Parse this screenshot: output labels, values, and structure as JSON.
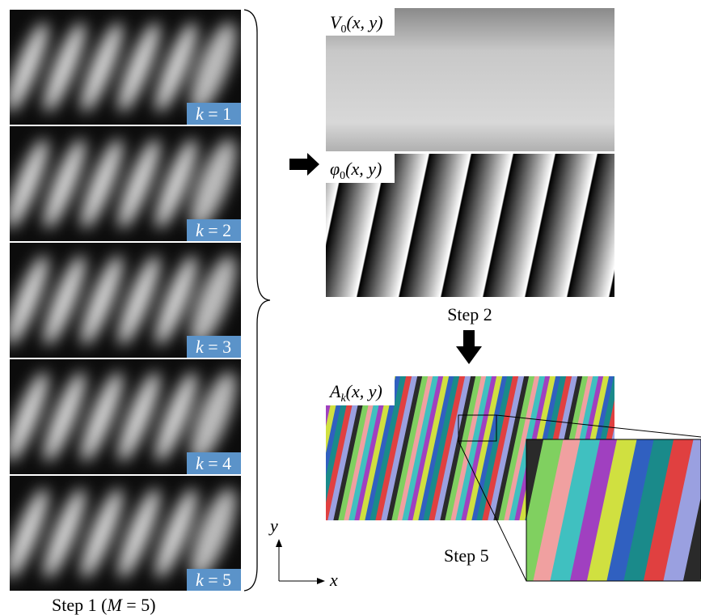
{
  "step1": {
    "panels": [
      {
        "variable": "k",
        "rest": " = 1"
      },
      {
        "variable": "k",
        "rest": " = 2"
      },
      {
        "variable": "k",
        "rest": " = 3"
      },
      {
        "variable": "k",
        "rest": " = 4"
      },
      {
        "variable": "k",
        "rest": " = 5"
      }
    ],
    "caption": {
      "before": "Step 1 (",
      "variable": "M",
      "after": " = 5)"
    }
  },
  "step2": {
    "visibility": {
      "symbol": "V",
      "subscript": "0",
      "args": "(x, y)"
    },
    "phase": {
      "symbol": "φ",
      "subscript": "0",
      "args": "(x, y)"
    },
    "caption": "Step 2"
  },
  "step5": {
    "amplitude": {
      "symbol": "A",
      "subscript": "k",
      "args": "(x, y)"
    },
    "caption": "Step 5"
  },
  "axes": {
    "y": "y",
    "x": "x"
  }
}
